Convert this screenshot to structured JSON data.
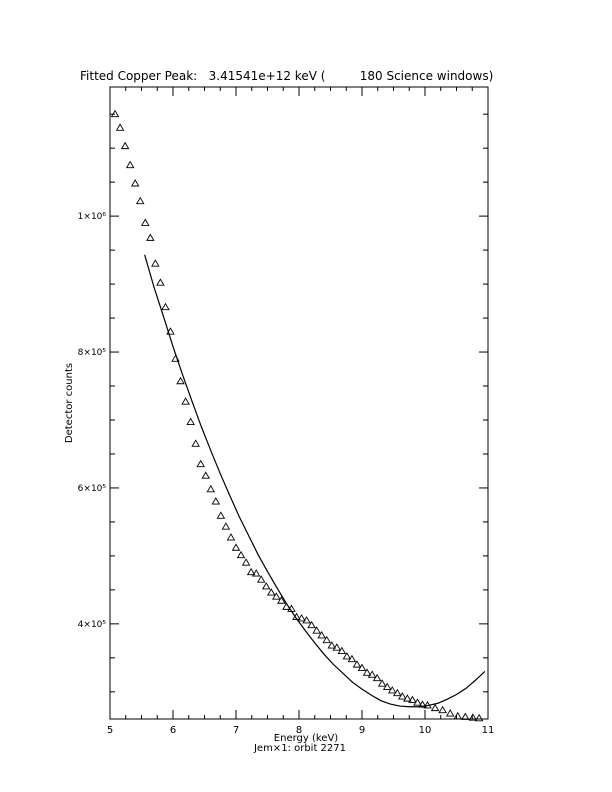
{
  "chart_data": {
    "type": "scatter",
    "title": "Fitted Copper Peak:   3.41541e+12 keV (         180 Science windows)",
    "xlabel": "Energy (keV)",
    "ylabel": "Detector counts",
    "footer": "Jem×1: orbit 2271",
    "xlim": [
      5,
      11
    ],
    "ylim": [
      260000,
      1190000
    ],
    "xticks": [
      {
        "value": 5,
        "label": "5"
      },
      {
        "value": 6,
        "label": "6"
      },
      {
        "value": 7,
        "label": "7"
      },
      {
        "value": 8,
        "label": "8"
      },
      {
        "value": 9,
        "label": "9"
      },
      {
        "value": 10,
        "label": "10"
      },
      {
        "value": 11,
        "label": "11"
      }
    ],
    "yticks": [
      {
        "value": 400000,
        "label": "4×10⁵"
      },
      {
        "value": 600000,
        "label": "6×10⁵"
      },
      {
        "value": 800000,
        "label": "8×10⁵"
      },
      {
        "value": 1000000,
        "label": "1×10⁶"
      }
    ],
    "grid": false,
    "series": [
      {
        "style": "triangle markers",
        "x": [
          5.08,
          5.16,
          5.24,
          5.32,
          5.4,
          5.48,
          5.56,
          5.64,
          5.72,
          5.8,
          5.88,
          5.96,
          6.04,
          6.12,
          6.2,
          6.28,
          6.36,
          6.44,
          6.52,
          6.6,
          6.68,
          6.76,
          6.84,
          6.92,
          7.0,
          7.08,
          7.16,
          7.24,
          7.32,
          7.4,
          7.48,
          7.56,
          7.64,
          7.72,
          7.8,
          7.88,
          7.96,
          8.04,
          8.12,
          8.2,
          8.28,
          8.36,
          8.44,
          8.52,
          8.6,
          8.68,
          8.76,
          8.84,
          8.92,
          9.0,
          9.08,
          9.16,
          9.24,
          9.32,
          9.4,
          9.48,
          9.56,
          9.64,
          9.72,
          9.8,
          9.88,
          9.96,
          10.04,
          10.16,
          10.28,
          10.4,
          10.52,
          10.64,
          10.76,
          10.86
        ],
        "values": [
          1150000,
          1130000,
          1103000,
          1075000,
          1048000,
          1022000,
          990000,
          968000,
          930000,
          902000,
          866000,
          830000,
          790000,
          757000,
          727000,
          697000,
          665000,
          635000,
          618000,
          598000,
          580000,
          559000,
          543000,
          527000,
          512000,
          501000,
          490000,
          476000,
          474000,
          465000,
          455000,
          446000,
          440000,
          434000,
          425000,
          422000,
          410000,
          408000,
          405000,
          398000,
          390000,
          383000,
          376000,
          368000,
          365000,
          360000,
          352000,
          348000,
          340000,
          335000,
          328000,
          325000,
          320000,
          312000,
          307000,
          302000,
          298000,
          293000,
          290000,
          288000,
          284000,
          281000,
          280000,
          276000,
          273000,
          268000,
          264000,
          263000,
          262000,
          261000
        ]
      },
      {
        "style": "solid line",
        "x": [
          5.55,
          5.7,
          5.85,
          6.0,
          6.15,
          6.3,
          6.45,
          6.6,
          6.75,
          6.9,
          7.05,
          7.2,
          7.35,
          7.5,
          7.65,
          7.8,
          7.95,
          8.1,
          8.25,
          8.4,
          8.55,
          8.7,
          8.85,
          9.0,
          9.15,
          9.3,
          9.45,
          9.6,
          9.75,
          9.9,
          10.05,
          10.2,
          10.35,
          10.5,
          10.65,
          10.8,
          10.95
        ],
        "values": [
          943000,
          895000,
          852000,
          808000,
          767000,
          728000,
          690000,
          655000,
          621000,
          589000,
          558000,
          530000,
          502000,
          477000,
          453000,
          430000,
          409000,
          390000,
          372000,
          355000,
          340000,
          327000,
          314000,
          304000,
          295000,
          287000,
          282000,
          279000,
          278000,
          278000,
          280000,
          283000,
          289000,
          296000,
          305000,
          317000,
          330000
        ]
      }
    ]
  }
}
